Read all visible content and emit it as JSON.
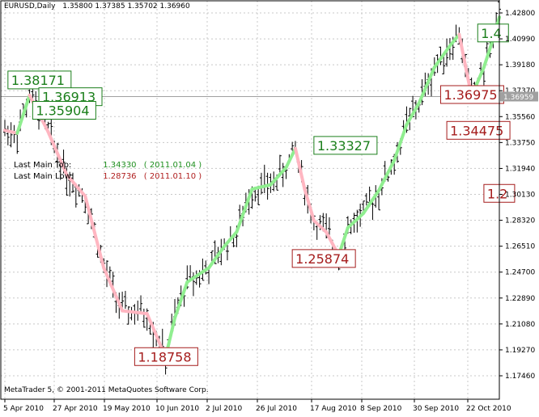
{
  "header": {
    "symbol": "EURUSD,Daily",
    "ohlc": "1.35800 1.37385 1.35702 1.36960"
  },
  "legend": {
    "top_label": "Last Main Top:",
    "top_value": "1.34330",
    "top_date": "( 2011.01.04 )",
    "low_label": "Last Main Low:",
    "low_value": "1.28736",
    "low_date": "( 2011.01.10 )",
    "top_color": "#1f8f1f",
    "low_color": "#b02020"
  },
  "footer": {
    "copyright": "MetaTrader 5, © 2001-2011 MetaQuotes Software Corp."
  },
  "colors": {
    "up_line": "#90ee90",
    "down_line": "#ffb6c1",
    "grid": "#c8c8c8",
    "box_up": "#1b7f1b",
    "box_down": "#a51c1c",
    "bars": "#000000"
  },
  "chart_data": {
    "type": "ohlc",
    "x_ticks": [
      "5 Apr 2010",
      "27 Apr 2010",
      "19 May 2010",
      "10 Jun 2010",
      "2 Jul 2010",
      "26 Jul 2010",
      "17 Aug 2010",
      "8 Sep 2010",
      "30 Sep 2010",
      "22 Oct 2010"
    ],
    "y_ticks": [
      "1.42800",
      "1.40990",
      "1.39180",
      "1.37370",
      "1.35560",
      "1.33750",
      "1.31940",
      "1.30130",
      "1.28320",
      "1.26510",
      "1.24700",
      "1.22890",
      "1.21080",
      "1.19270",
      "1.17460"
    ],
    "current_price": "1.36959",
    "grid": true,
    "swing_points": [
      {
        "bar": 0,
        "price": 1.346
      },
      {
        "bar": 4,
        "price": 1.344
      },
      {
        "bar": 8,
        "price": 1.3705
      },
      {
        "bar": 14,
        "price": 1.345
      },
      {
        "bar": 20,
        "price": 1.315
      },
      {
        "bar": 26,
        "price": 1.3
      },
      {
        "bar": 32,
        "price": 1.25
      },
      {
        "bar": 38,
        "price": 1.22
      },
      {
        "bar": 46,
        "price": 1.218
      },
      {
        "bar": 52,
        "price": 1.1876
      },
      {
        "bar": 55,
        "price": 1.215
      },
      {
        "bar": 59,
        "price": 1.24
      },
      {
        "bar": 66,
        "price": 1.25
      },
      {
        "bar": 71,
        "price": 1.265
      },
      {
        "bar": 75,
        "price": 1.275
      },
      {
        "bar": 80,
        "price": 1.305
      },
      {
        "bar": 86,
        "price": 1.308
      },
      {
        "bar": 91,
        "price": 1.32
      },
      {
        "bar": 94,
        "price": 1.3333
      },
      {
        "bar": 97,
        "price": 1.305
      },
      {
        "bar": 100,
        "price": 1.283
      },
      {
        "bar": 104,
        "price": 1.275
      },
      {
        "bar": 108,
        "price": 1.2587
      },
      {
        "bar": 111,
        "price": 1.278
      },
      {
        "bar": 116,
        "price": 1.288
      },
      {
        "bar": 121,
        "price": 1.304
      },
      {
        "bar": 126,
        "price": 1.325
      },
      {
        "bar": 130,
        "price": 1.35
      },
      {
        "bar": 134,
        "price": 1.365
      },
      {
        "bar": 139,
        "price": 1.39
      },
      {
        "bar": 144,
        "price": 1.405
      },
      {
        "bar": 147,
        "price": 1.413
      },
      {
        "bar": 151,
        "price": 1.3698
      },
      {
        "bar": 155,
        "price": 1.39
      },
      {
        "bar": 158,
        "price": 1.41
      },
      {
        "bar": 160,
        "price": 1.425
      }
    ],
    "labels": [
      {
        "text": "1.38171",
        "bar": 1,
        "price": 1.3812,
        "kind": "up"
      },
      {
        "text": "1.36913",
        "bar": 11,
        "price": 1.3695,
        "kind": "up"
      },
      {
        "text": "1.35904",
        "bar": 9,
        "price": 1.36,
        "kind": "up"
      },
      {
        "text": "1.18758",
        "bar": 42,
        "price": 1.188,
        "kind": "down"
      },
      {
        "text": "1.33327",
        "bar": 100,
        "price": 1.3355,
        "kind": "up"
      },
      {
        "text": "1.25874",
        "bar": 93,
        "price": 1.2565,
        "kind": "down"
      },
      {
        "text": "1.36975",
        "bar": 141,
        "price": 1.371,
        "kind": "down"
      },
      {
        "text": "1.4",
        "bar": 153,
        "price": 1.414,
        "kind": "up"
      },
      {
        "text": "1.34475",
        "bar": 143,
        "price": 1.346,
        "kind": "down"
      },
      {
        "text": "1.2",
        "bar": 155,
        "price": 1.302,
        "kind": "down"
      }
    ]
  }
}
